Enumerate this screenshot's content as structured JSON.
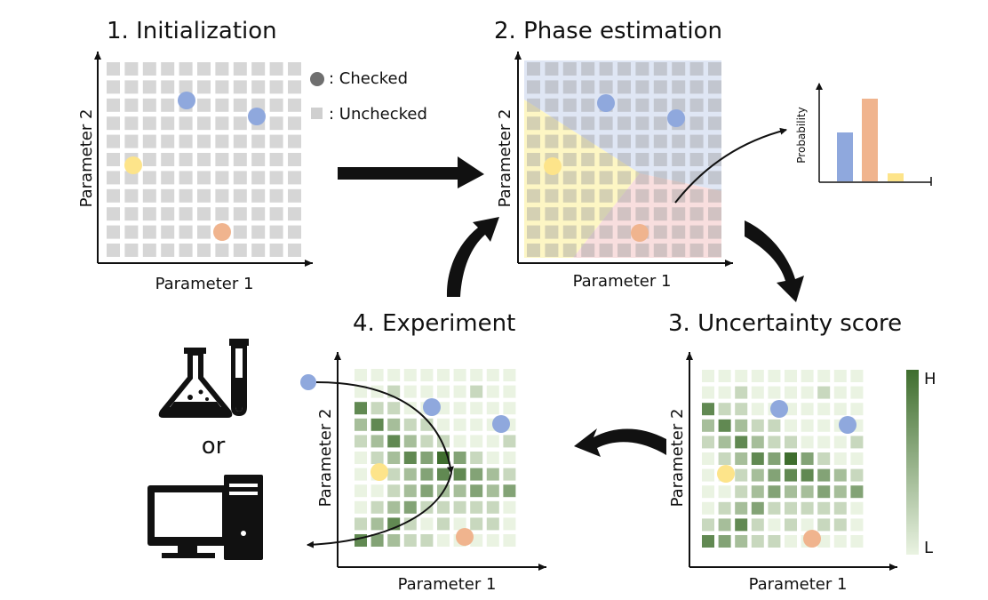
{
  "titles": {
    "step1": "1. Initialization",
    "step2": "2. Phase estimation",
    "step3": "3. Uncertainty score",
    "step4": "4. Experiment"
  },
  "axes": {
    "x": "Parameter 1",
    "y": "Parameter 2"
  },
  "legend": {
    "checked": ": Checked",
    "unchecked": ": Unchecked"
  },
  "probability_chart": {
    "ylabel": "Probability",
    "values": [
      0.55,
      0.93,
      0.09
    ],
    "colors": [
      "#8fa8dd",
      "#f0b48e",
      "#fde48a"
    ]
  },
  "colorbar": {
    "high": "H",
    "low": "L"
  },
  "or_text": "or",
  "colors": {
    "cell_gray": "#d6d6d6",
    "phase_blue": "#8fa8dd",
    "phase_orange": "#f0b48e",
    "phase_yellow": "#fde48a",
    "region_blue": "#dfe6f4",
    "region_yellow": "#fdf6c4",
    "region_pink": "#f8dede",
    "green_dark": "#3f6e2e",
    "green_light": "#eaf3e2"
  },
  "uncertainty_grid": [
    [
      1,
      1,
      1,
      1,
      1,
      1,
      1,
      1,
      1,
      1
    ],
    [
      1,
      1,
      2,
      1,
      1,
      1,
      1,
      2,
      1,
      1
    ],
    [
      5,
      2,
      2,
      1,
      1,
      1,
      1,
      1,
      1,
      1
    ],
    [
      3,
      5,
      3,
      2,
      2,
      1,
      1,
      1,
      1,
      1
    ],
    [
      2,
      3,
      5,
      3,
      2,
      2,
      1,
      1,
      1,
      2
    ],
    [
      1,
      2,
      3,
      5,
      4,
      6,
      4,
      2,
      1,
      1
    ],
    [
      1,
      1,
      2,
      3,
      4,
      5,
      5,
      4,
      3,
      2
    ],
    [
      1,
      1,
      2,
      3,
      4,
      3,
      3,
      4,
      3,
      4
    ],
    [
      1,
      2,
      3,
      4,
      2,
      2,
      2,
      2,
      2,
      1
    ],
    [
      2,
      3,
      5,
      2,
      1,
      2,
      1,
      2,
      2,
      1
    ],
    [
      5,
      4,
      3,
      2,
      2,
      1,
      1,
      1,
      1,
      1
    ]
  ]
}
